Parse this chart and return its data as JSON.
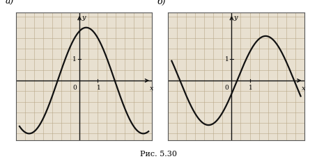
{
  "title_a": "а)",
  "title_b": "б)",
  "caption": "Рис. 5.30",
  "bg_color": "#e8e0d0",
  "grid_color": "#b8a888",
  "axis_color": "#111111",
  "curve_color": "#111111",
  "border_color": "#555555",
  "fig_bg": "#ffffff",
  "panel_a": {
    "xlim": [
      -3.5,
      4.0
    ],
    "ylim": [
      -2.8,
      3.2
    ],
    "x_tick_pos": 1,
    "y_tick_pos": 1,
    "curve_A": 2.5,
    "curve_phase": 1.2,
    "curve_xstart": -3.3,
    "curve_xend": 3.8
  },
  "panel_b": {
    "xlim": [
      -3.5,
      4.0
    ],
    "ylim": [
      -2.8,
      3.2
    ],
    "x_tick_pos": 1,
    "y_tick_pos": 1,
    "curve_A": 2.1,
    "curve_phase": -0.3,
    "curve_xstart": -3.3,
    "curve_xend": 3.8
  }
}
